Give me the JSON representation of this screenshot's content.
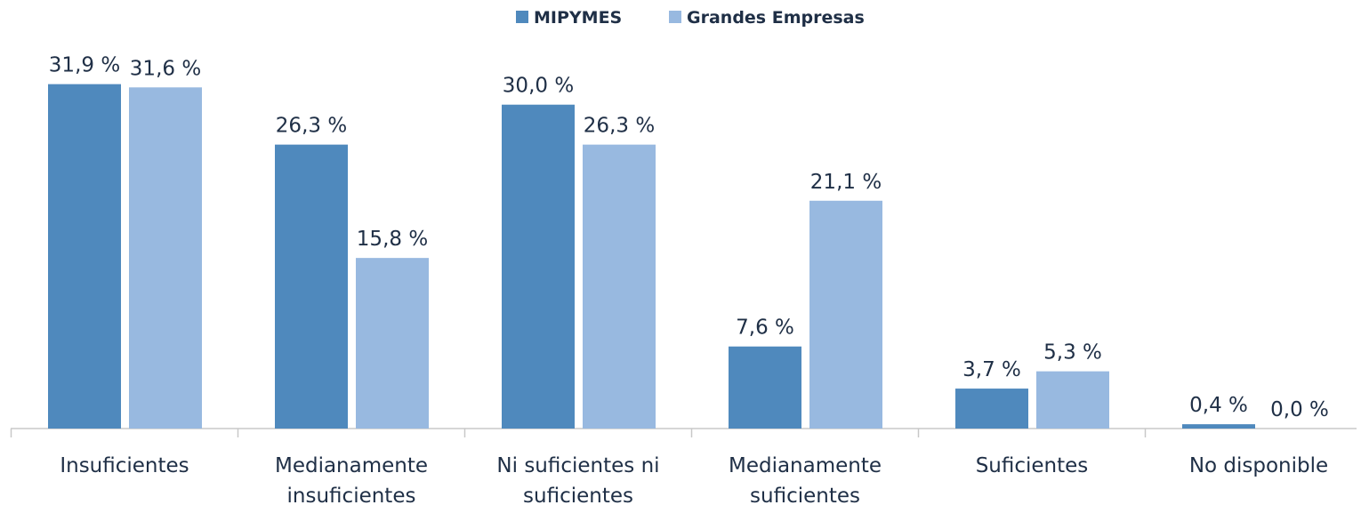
{
  "chart_data": {
    "type": "bar",
    "categories": [
      "Insuficientes",
      "Medianamente insuficientes",
      "Ni suficientes ni suficientes",
      "Medianamente suficientes",
      "Suficientes",
      "No disponible"
    ],
    "series": [
      {
        "name": "MIPYMES",
        "color": "#4f89bd",
        "values": [
          31.9,
          26.3,
          30.0,
          7.6,
          3.7,
          0.4
        ],
        "value_labels": [
          "31,9 %",
          "26,3 %",
          "30,0 %",
          "7,6 %",
          "3,7 %",
          "0,4 %"
        ]
      },
      {
        "name": "Grandes Empresas",
        "color": "#98b9e0",
        "values": [
          31.6,
          15.8,
          26.3,
          21.1,
          5.3,
          0.0
        ],
        "value_labels": [
          "31,6 %",
          "15,8 %",
          "26,3 %",
          "21,1 %",
          "5,3 %",
          "0,0 %"
        ]
      }
    ],
    "ylim": [
      0,
      35
    ],
    "legend": "top"
  }
}
